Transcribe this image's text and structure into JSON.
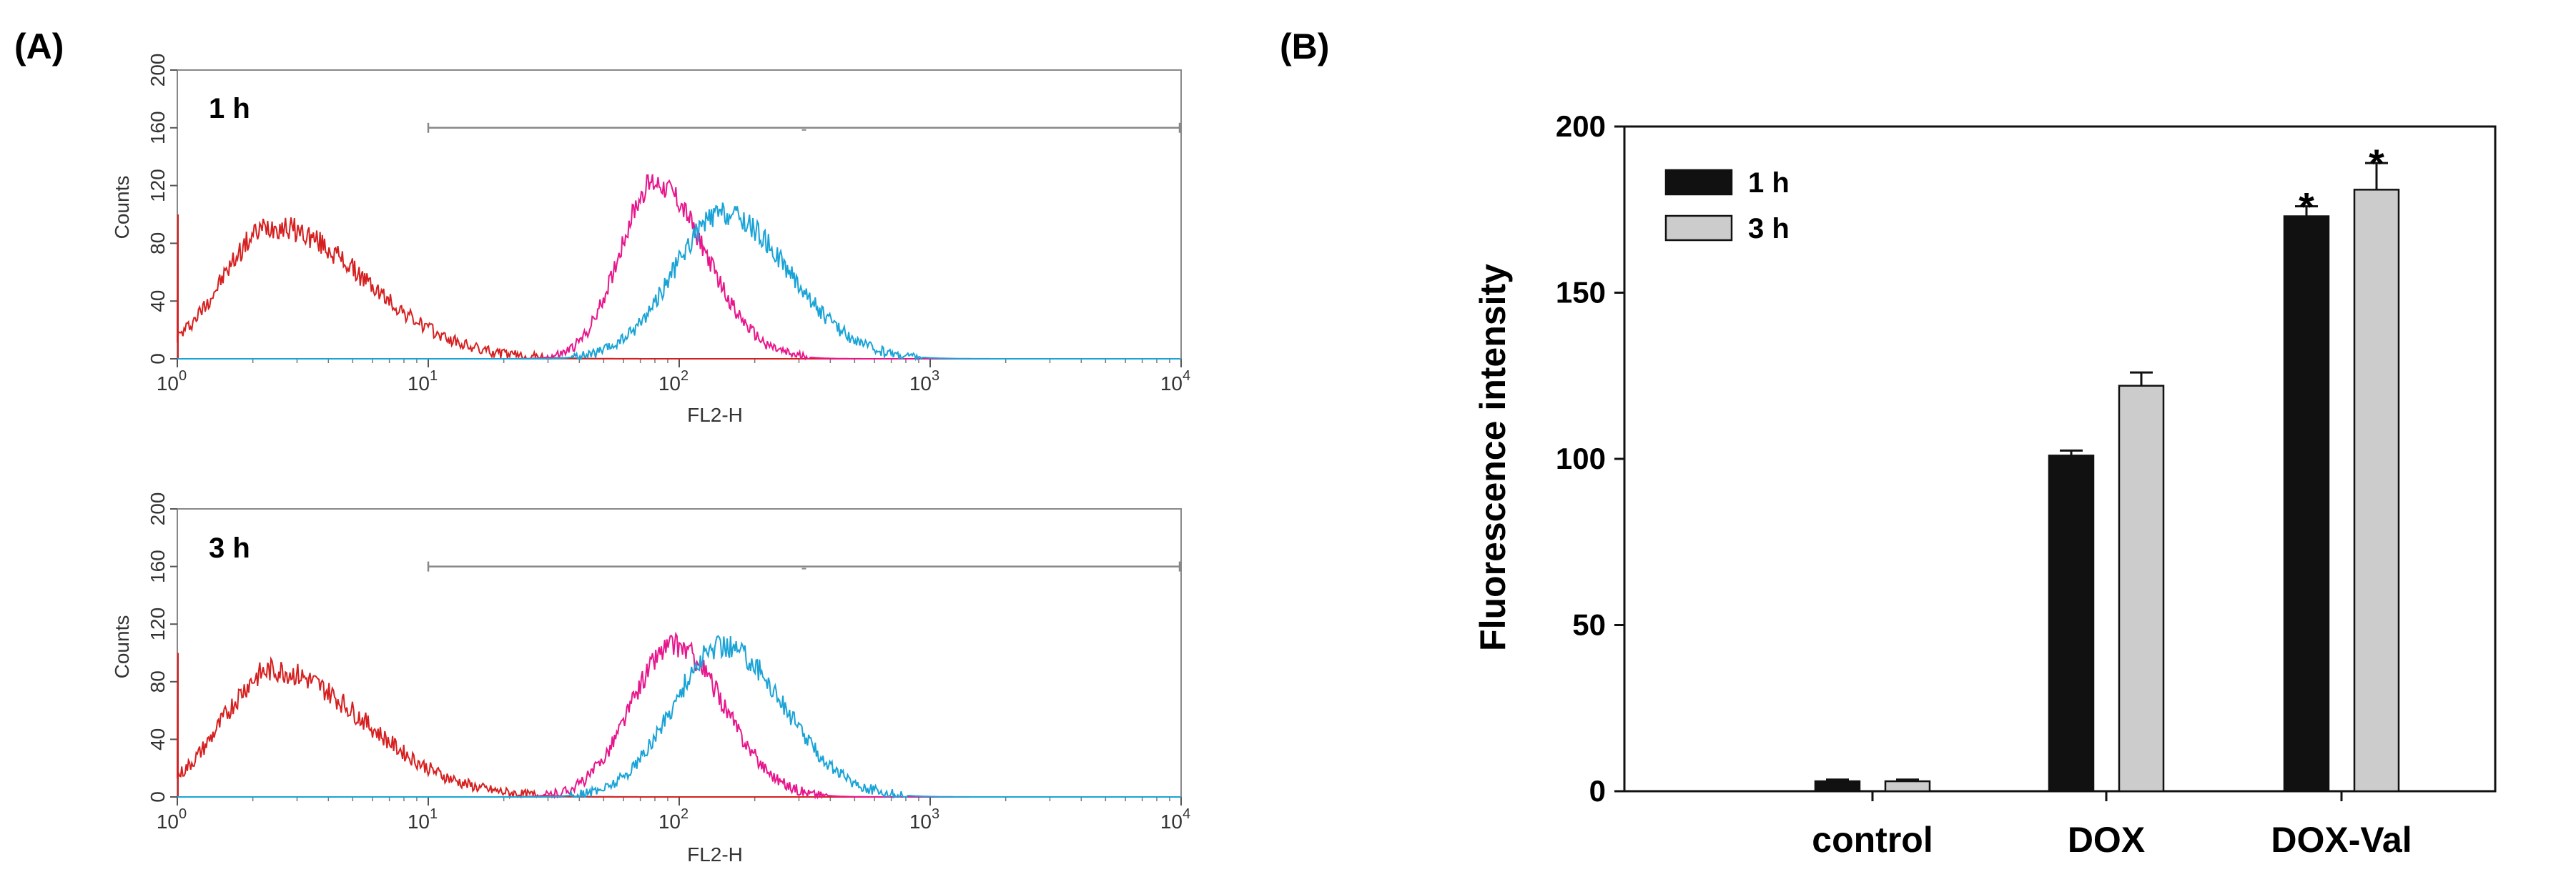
{
  "panels": {
    "a_label": "(A)",
    "b_label": "(B)"
  },
  "colors": {
    "control": "#d62020",
    "dox": "#e8168c",
    "dox_val": "#19a3d6",
    "bar_1h": "#111111",
    "bar_3h": "#cccccc"
  },
  "chart_data": [
    {
      "type": "line",
      "title": "1 h",
      "xlabel": "FL2-H",
      "ylabel": "Counts",
      "xscale": "log",
      "xlim": [
        1,
        10000
      ],
      "ylim": [
        0,
        200
      ],
      "x_ticks": [
        "10",
        "10",
        "10",
        "10",
        "10"
      ],
      "x_tick_exponents": [
        "0",
        "1",
        "2",
        "3",
        "4"
      ],
      "y_ticks": [
        "0",
        "40",
        "80",
        "120",
        "160",
        "200"
      ],
      "gate_marker": {
        "x_start": 10,
        "x_end": 10000,
        "y": 160
      },
      "series": [
        {
          "color": "#d62020",
          "peak_x": 2.4,
          "peak_y": 92,
          "log_sd_left": 0.2,
          "log_sd_right": 0.36
        },
        {
          "color": "#e8168c",
          "peak_x": 80,
          "peak_y": 122,
          "log_sd_left": 0.14,
          "log_sd_right": 0.2
        },
        {
          "color": "#19a3d6",
          "peak_x": 150,
          "peak_y": 100,
          "log_sd_left": 0.2,
          "log_sd_right": 0.26
        }
      ]
    },
    {
      "type": "line",
      "title": "3 h",
      "xlabel": "FL2-H",
      "ylabel": "Counts",
      "xscale": "log",
      "xlim": [
        1,
        10000
      ],
      "ylim": [
        0,
        200
      ],
      "x_ticks": [
        "10",
        "10",
        "10",
        "10",
        "10"
      ],
      "x_tick_exponents": [
        "0",
        "1",
        "2",
        "3",
        "4"
      ],
      "y_ticks": [
        "0",
        "40",
        "80",
        "120",
        "160",
        "200"
      ],
      "gate_marker": {
        "x_start": 10,
        "x_end": 10000,
        "y": 160
      },
      "series": [
        {
          "color": "#d62020",
          "peak_x": 2.4,
          "peak_y": 88,
          "log_sd_left": 0.2,
          "log_sd_right": 0.36
        },
        {
          "color": "#e8168c",
          "peak_x": 95,
          "peak_y": 105,
          "log_sd_left": 0.17,
          "log_sd_right": 0.2
        },
        {
          "color": "#19a3d6",
          "peak_x": 150,
          "peak_y": 105,
          "log_sd_left": 0.2,
          "log_sd_right": 0.24
        }
      ]
    },
    {
      "type": "bar",
      "xlabel": "",
      "ylabel": "Fluorescence intensity",
      "ylim": [
        0,
        200
      ],
      "y_ticks": [
        "0",
        "50",
        "100",
        "150",
        "200"
      ],
      "categories": [
        "control",
        "DOX",
        "DOX-Val"
      ],
      "legend_position": "top-left",
      "series": [
        {
          "name": "1 h",
          "color": "#111111",
          "values": [
            3,
            101,
            173
          ],
          "errors": [
            0.5,
            1.5,
            3
          ]
        },
        {
          "name": "3 h",
          "color": "#cccccc",
          "values": [
            3,
            122,
            181
          ],
          "errors": [
            0.5,
            4,
            8
          ]
        }
      ],
      "annotations": [
        {
          "category": "DOX-Val",
          "series": "1 h",
          "text": "*"
        },
        {
          "category": "DOX-Val",
          "series": "3 h",
          "text": "*"
        }
      ]
    }
  ]
}
